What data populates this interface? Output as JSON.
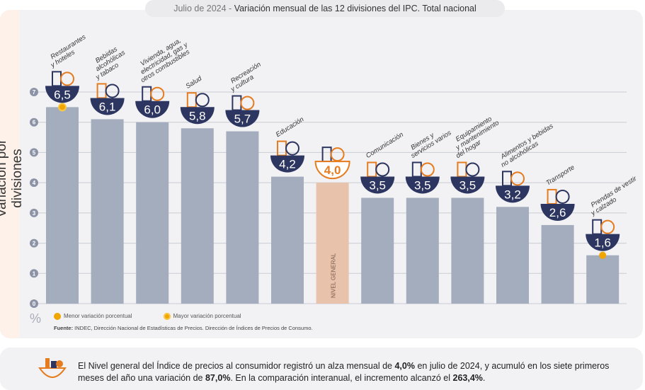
{
  "title": {
    "prefix": "Julio de 2024",
    "sep": " - ",
    "main": "Variación mensual de las 12 divisiones del IPC. Total nacional"
  },
  "colors": {
    "bar": "#a4adbd",
    "highlight_bar": "#e8c2ab",
    "badge": "#2d3561",
    "highlight_value": "#e57c1f",
    "marker": "#f0a500",
    "icon": "#e57c1f"
  },
  "chart_data": {
    "type": "bar",
    "ylabel": "Variación por divisiones",
    "unit": "%",
    "ylim": [
      0,
      7
    ],
    "yticks": [
      0,
      1,
      2,
      3,
      4,
      5,
      6,
      7
    ],
    "grid": true,
    "categories": [
      "Restaurantes y hoteles",
      "Bebidas alcohólicas y tabaco",
      "Vivienda, agua, electricidad, gas y otros combustibles",
      "Salud",
      "Recreación y cultura",
      "Educación",
      "Nivel general",
      "Comunicación",
      "Bienes y servicios varios",
      "Equipamiento y mantenimiento del hogar",
      "Alimentos y bebidas no alcohólicas",
      "Transporte",
      "Prendas de vestir y calzado"
    ],
    "label_lines": [
      [
        "Restaurantes",
        "y hoteles"
      ],
      [
        "Bebidas",
        "alcohólicas",
        "y tabaco"
      ],
      [
        "Vivienda, agua,",
        "electricidad, gas y",
        "otros combustibles"
      ],
      [
        "Salud"
      ],
      [
        "Recreación",
        "y cultura"
      ],
      [
        "Educación"
      ],
      [],
      [
        "Comunicación"
      ],
      [
        "Bienes y",
        "servicios varios"
      ],
      [
        "Equipamiento",
        "y mantenimiento",
        "del hogar"
      ],
      [
        "Alimentos y bebidas",
        "no alcohólicas"
      ],
      [
        "Transporte"
      ],
      [
        "Prendas de vestir",
        "y calzado"
      ]
    ],
    "values": [
      6.5,
      6.1,
      6.0,
      5.8,
      5.7,
      4.2,
      4.0,
      3.5,
      3.5,
      3.5,
      3.2,
      2.6,
      1.6
    ],
    "value_labels": [
      "6,5",
      "6,1",
      "6,0",
      "5,8",
      "5,7",
      "4,2",
      "4,0",
      "3,5",
      "3,5",
      "3,5",
      "3,2",
      "2,6",
      "1,6"
    ],
    "highlight_index": 6,
    "highlight_bar_label": "NIVEL GENERAL",
    "max_marker_index": 0,
    "min_marker_index": 12
  },
  "legend": {
    "min": "Menor variación porcentual",
    "max": "Mayor variación porcentual"
  },
  "source": {
    "label": "Fuente:",
    "text": " INDEC, Dirección Nacional de Estadísticas de Precios. Dirección de Índices de Precios de Consumo."
  },
  "note": {
    "t1": "El Nivel general del Índice de precios al consumidor registró un alza mensual de ",
    "b1": "4,0%",
    "t2": " en julio de 2024, y acumuló en los siete primeros meses del año una variación de ",
    "b2": "87,0%",
    "t3": ". En la comparación interanual, el incremento alcanzó el ",
    "b3": "263,4%",
    "t4": "."
  }
}
